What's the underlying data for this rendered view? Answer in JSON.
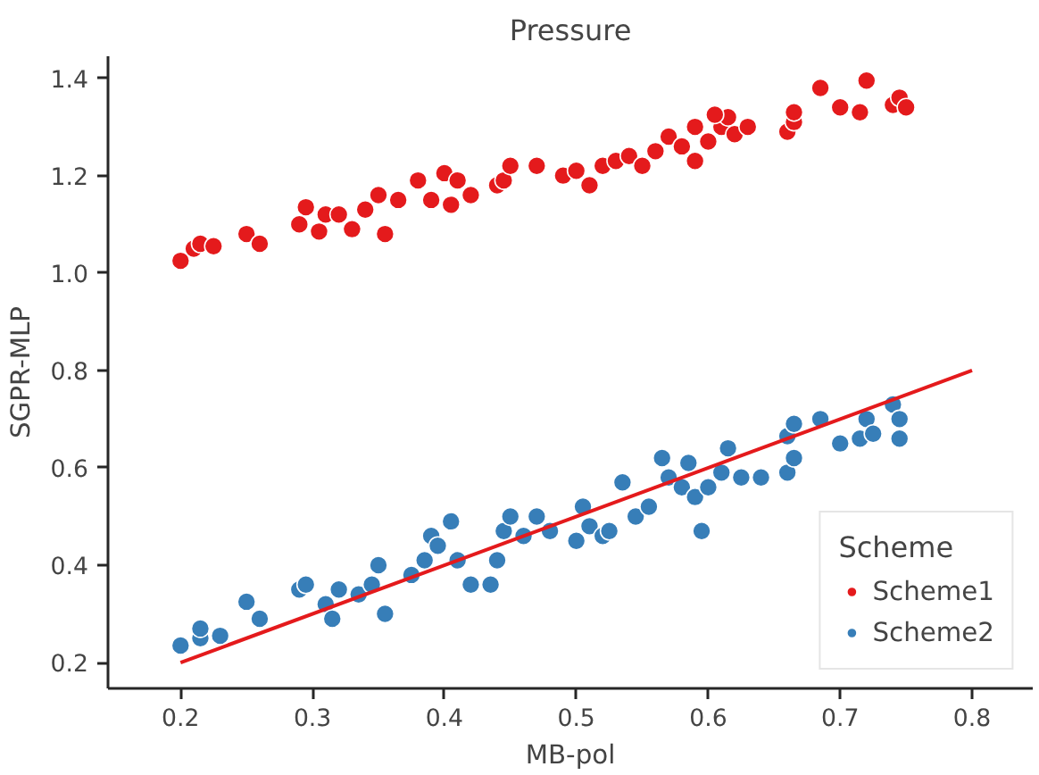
{
  "chart_data": {
    "type": "scatter",
    "title": "Pressure",
    "xlabel": "MB-pol",
    "ylabel": "SGPR-MLP",
    "legend_title": "Scheme",
    "legend": "bottom right",
    "grid": false,
    "xlim": [
      0.145,
      0.846
    ],
    "ylim": [
      0.147,
      1.445
    ],
    "xticks": [
      0.2,
      0.3,
      0.4,
      0.5,
      0.6,
      0.7,
      0.8
    ],
    "yticks": [
      {
        "value": 0.2,
        "label": "0.2"
      },
      {
        "value": 0.4,
        "label": "0.4"
      },
      {
        "value": 0.6,
        "label": "0.6"
      },
      {
        "value": 0.8,
        "label": "0.8"
      },
      {
        "value": 1,
        "label": "1.0"
      },
      {
        "value": 1.2,
        "label": "1.2"
      },
      {
        "value": 1.4,
        "label": "1.4"
      }
    ],
    "series": [
      {
        "name": "Scheme1",
        "color": "#e41a1c",
        "marker": "circle",
        "x": [
          0.2,
          0.21,
          0.215,
          0.225,
          0.25,
          0.26,
          0.29,
          0.295,
          0.305,
          0.31,
          0.32,
          0.33,
          0.34,
          0.35,
          0.355,
          0.365,
          0.38,
          0.39,
          0.4,
          0.405,
          0.41,
          0.42,
          0.44,
          0.445,
          0.45,
          0.47,
          0.49,
          0.5,
          0.51,
          0.52,
          0.53,
          0.54,
          0.55,
          0.56,
          0.57,
          0.58,
          0.59,
          0.6,
          0.61,
          0.615,
          0.62,
          0.63,
          0.66,
          0.665,
          0.665,
          0.685,
          0.7,
          0.715,
          0.72,
          0.74,
          0.745,
          0.75,
          0.59,
          0.605
        ],
        "values": [
          1.025,
          1.05,
          1.06,
          1.055,
          1.08,
          1.06,
          1.1,
          1.135,
          1.085,
          1.12,
          1.12,
          1.09,
          1.13,
          1.16,
          1.08,
          1.15,
          1.19,
          1.15,
          1.205,
          1.14,
          1.19,
          1.16,
          1.18,
          1.19,
          1.22,
          1.22,
          1.2,
          1.21,
          1.18,
          1.22,
          1.23,
          1.24,
          1.22,
          1.25,
          1.28,
          1.26,
          1.23,
          1.27,
          1.3,
          1.32,
          1.285,
          1.3,
          1.29,
          1.31,
          1.33,
          1.38,
          1.34,
          1.33,
          1.395,
          1.345,
          1.36,
          1.34,
          1.3,
          1.325
        ]
      },
      {
        "name": "Scheme2",
        "color": "#377eb8",
        "marker": "circle",
        "x": [
          0.2,
          0.215,
          0.215,
          0.23,
          0.25,
          0.26,
          0.29,
          0.295,
          0.31,
          0.315,
          0.32,
          0.335,
          0.345,
          0.35,
          0.355,
          0.375,
          0.385,
          0.39,
          0.395,
          0.405,
          0.41,
          0.42,
          0.435,
          0.44,
          0.445,
          0.45,
          0.46,
          0.47,
          0.48,
          0.5,
          0.505,
          0.51,
          0.52,
          0.525,
          0.535,
          0.545,
          0.555,
          0.565,
          0.57,
          0.58,
          0.585,
          0.59,
          0.595,
          0.6,
          0.61,
          0.615,
          0.625,
          0.64,
          0.66,
          0.665,
          0.66,
          0.665,
          0.685,
          0.7,
          0.715,
          0.72,
          0.725,
          0.74,
          0.745,
          0.745
        ],
        "values": [
          0.235,
          0.25,
          0.27,
          0.255,
          0.325,
          0.29,
          0.35,
          0.36,
          0.32,
          0.29,
          0.35,
          0.34,
          0.36,
          0.4,
          0.3,
          0.38,
          0.41,
          0.46,
          0.44,
          0.49,
          0.41,
          0.36,
          0.36,
          0.41,
          0.47,
          0.5,
          0.46,
          0.5,
          0.47,
          0.45,
          0.52,
          0.48,
          0.46,
          0.47,
          0.57,
          0.5,
          0.52,
          0.62,
          0.58,
          0.56,
          0.61,
          0.54,
          0.47,
          0.56,
          0.59,
          0.64,
          0.58,
          0.58,
          0.665,
          0.69,
          0.59,
          0.62,
          0.7,
          0.65,
          0.66,
          0.7,
          0.67,
          0.73,
          0.7,
          0.66
        ]
      },
      {
        "type": "line",
        "color": "#e41a1c",
        "x": [
          0.2,
          0.8
        ],
        "values": [
          0.2,
          0.8
        ]
      }
    ]
  }
}
